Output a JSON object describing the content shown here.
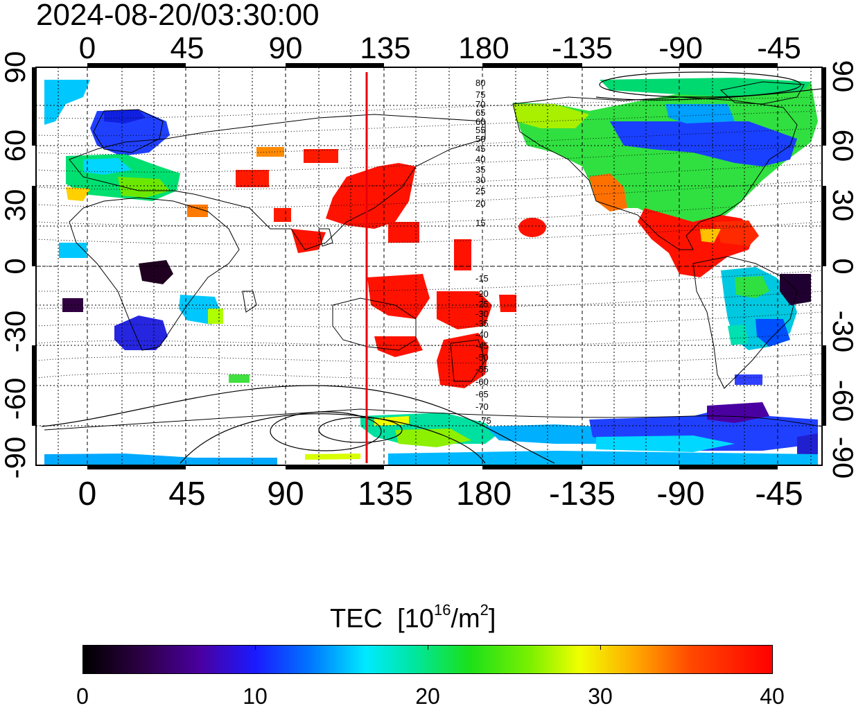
{
  "map": {
    "timestamp": "2024-08-20/03:30:00",
    "x_axis": {
      "ticks_top": [
        "0",
        "45",
        "90",
        "135",
        "180",
        "-135",
        "-90",
        "-45"
      ],
      "ticks_bottom": [
        "0",
        "45",
        "90",
        "135",
        "180",
        "-135",
        "-90",
        "-45"
      ]
    },
    "y_axis": {
      "ticks_left": [
        "90",
        "60",
        "30",
        "0",
        "-30",
        "-60",
        "-90"
      ],
      "ticks_right": [
        "90",
        "60",
        "30",
        "0",
        "-30",
        "-60",
        "-90"
      ]
    },
    "subsolar_longitude": 127,
    "colors": {
      "meridian_line": "#e8000b"
    },
    "contour_labels_north": [
      "80",
      "75",
      "70",
      "65",
      "60",
      "55",
      "50",
      "45",
      "40",
      "35",
      "30",
      "25",
      "20",
      "15"
    ],
    "contour_labels_south": [
      "-15",
      "-20",
      "-25",
      "-30",
      "-35",
      "-40",
      "-45",
      "-50",
      "-55",
      "-60",
      "-65",
      "-70",
      "-75"
    ]
  },
  "colorbar": {
    "title": "TEC",
    "unit_prefix": "[10",
    "unit_exp": "16",
    "unit_mid": "/m",
    "unit_exp2": "2",
    "unit_suffix": "]",
    "tick_labels": [
      "0",
      "10",
      "20",
      "30",
      "40"
    ],
    "min": 0,
    "max": 40
  }
}
